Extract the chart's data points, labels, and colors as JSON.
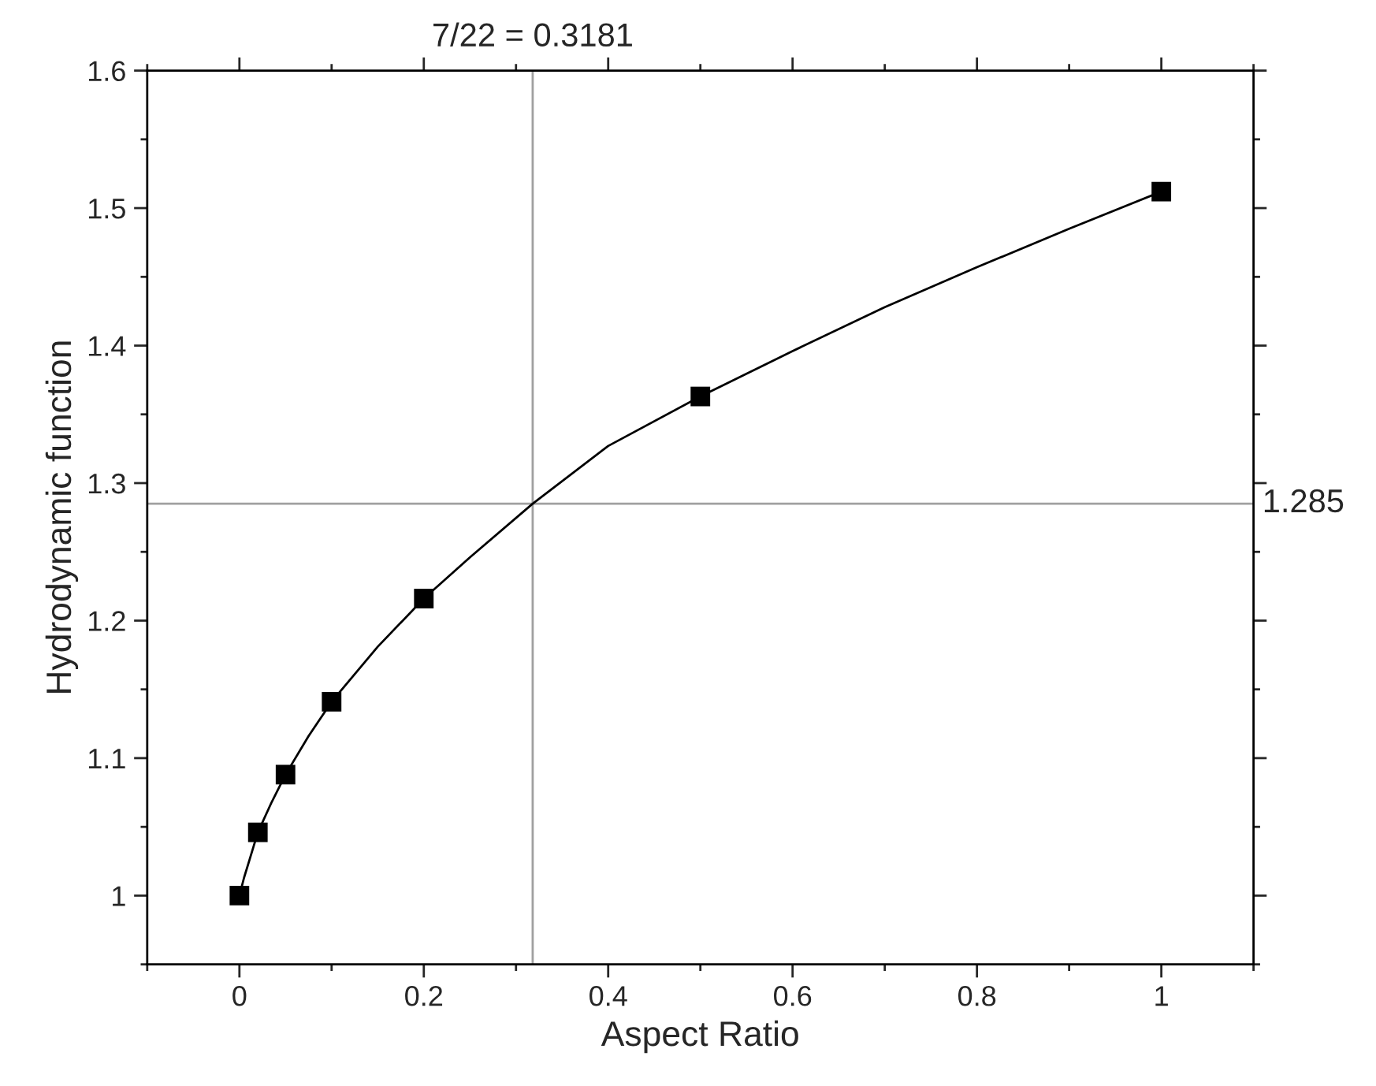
{
  "chart_data": {
    "type": "scatter",
    "xlabel": "Aspect Ratio",
    "ylabel": "Hydrodynamic function",
    "xlim": [
      -0.1,
      1.1
    ],
    "xticks": [
      0,
      0.2,
      0.4,
      0.6,
      0.8,
      {
        "value": 1,
        "label": "1"
      }
    ],
    "ylim": [
      0.95,
      1.6
    ],
    "yticks": [
      {
        "value": 1,
        "label": "1"
      },
      1.1,
      1.2,
      1.3,
      1.4,
      1.5,
      1.6
    ],
    "grid": false,
    "legend": false,
    "marker": "square",
    "series": [
      {
        "color": "#000000",
        "x": [
          0,
          0.02,
          0.05,
          0.1,
          0.2,
          0.5,
          1
        ],
        "values": [
          1.0,
          1.046,
          1.088,
          1.141,
          1.216,
          1.363,
          1.512
        ]
      },
      {
        "type": "line",
        "color": "#000000",
        "marker": "none",
        "line_style": "solid",
        "x": [
          0,
          0.005,
          0.01,
          0.02,
          0.035,
          0.05,
          0.075,
          0.1,
          0.15,
          0.2,
          0.25,
          0.3181,
          0.4,
          0.5,
          0.6,
          0.7,
          0.8,
          0.9,
          1
        ],
        "values": [
          1.0,
          1.013,
          1.024,
          1.046,
          1.068,
          1.088,
          1.116,
          1.141,
          1.181,
          1.216,
          1.246,
          1.285,
          1.327,
          1.363,
          1.396,
          1.428,
          1.457,
          1.485,
          1.512
        ]
      }
    ],
    "ref_lines": [
      {
        "axis": "x",
        "value": 0.3181,
        "label": "7/22 = 0.3181",
        "color": "#a0a0a0"
      },
      {
        "axis": "y",
        "value": 1.285,
        "label": "1.285",
        "color": "#a0a0a0"
      }
    ]
  }
}
